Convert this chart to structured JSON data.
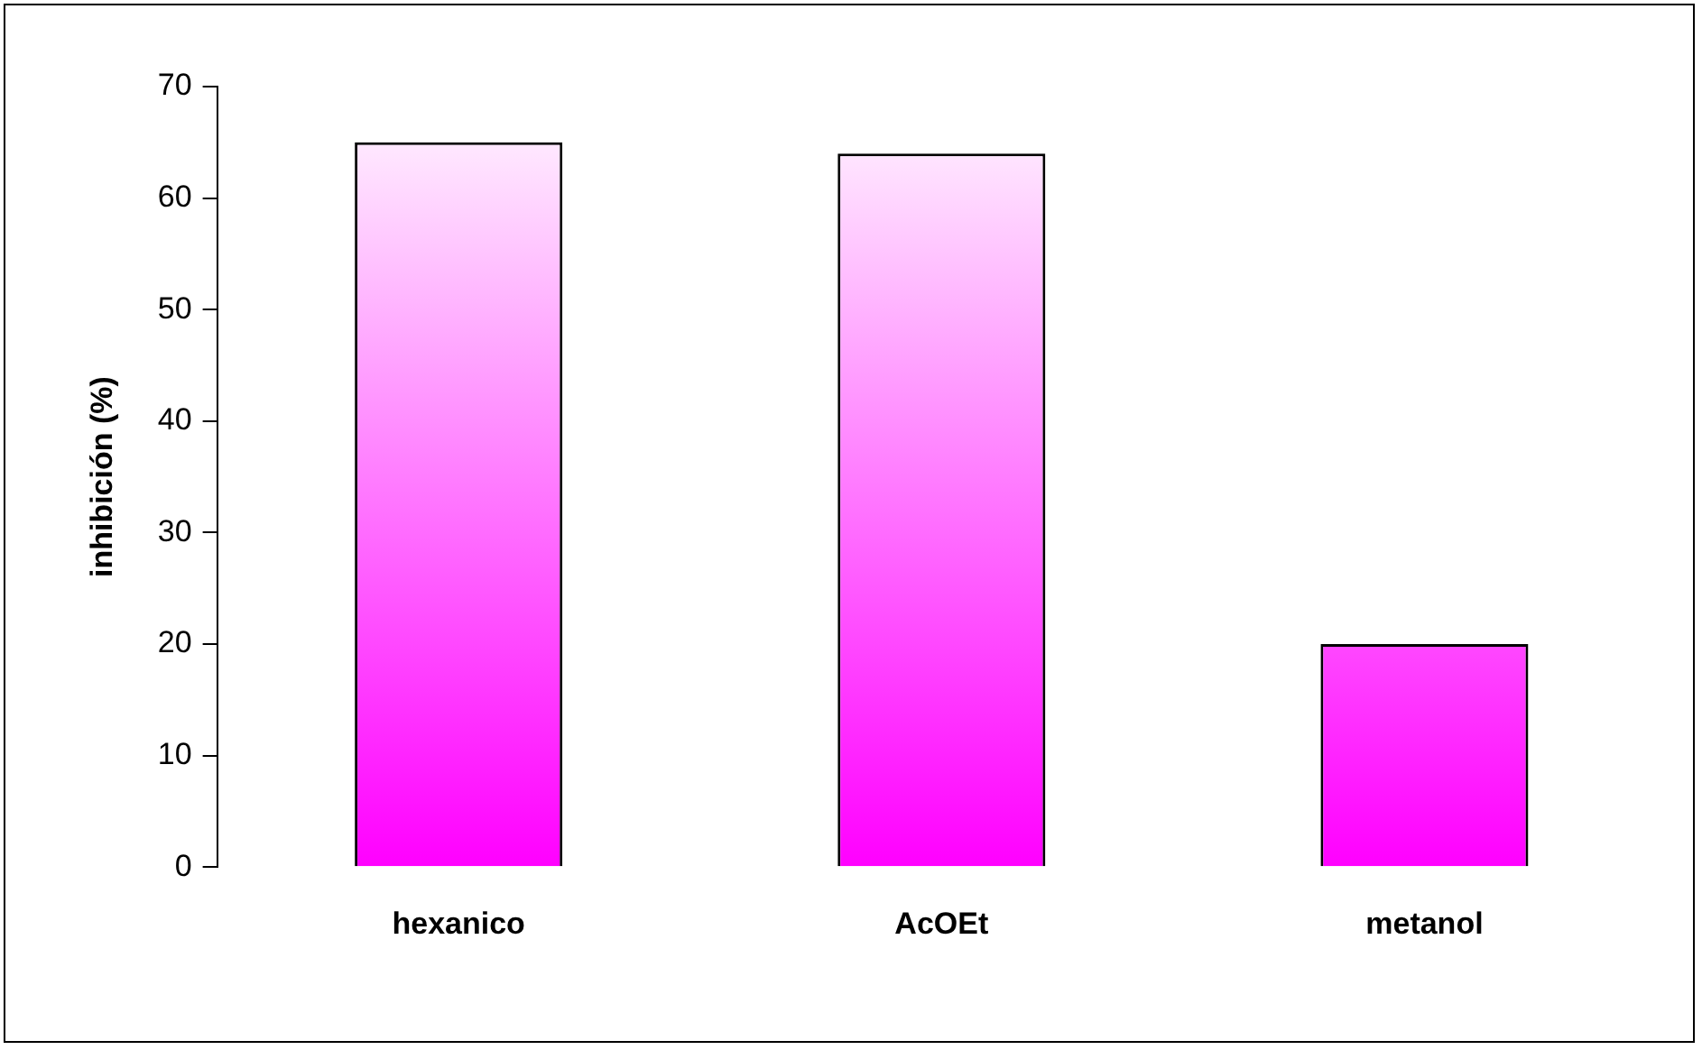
{
  "chart_data": {
    "type": "bar",
    "ylabel": "inhibición (%)",
    "categories": [
      "hexanico",
      "AcOEt",
      "metanol"
    ],
    "values": [
      65,
      64,
      20
    ],
    "color": "#ff00ff",
    "ylim": [
      0,
      70
    ],
    "yticks": [
      0,
      10,
      20,
      30,
      40,
      50,
      60,
      70
    ],
    "grid": false
  }
}
